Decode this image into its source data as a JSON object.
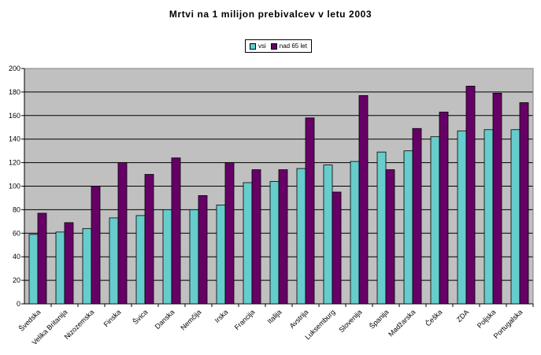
{
  "chart_data": {
    "type": "bar",
    "title": "Mrtvi na 1 milijon prebivalcev v letu 2003",
    "xlabel": "",
    "ylabel": "",
    "ylim": [
      0,
      200
    ],
    "yticks": [
      0,
      20,
      40,
      60,
      80,
      100,
      120,
      140,
      160,
      180,
      200
    ],
    "grid": true,
    "legend_position": "top-center",
    "categories": [
      "Švedska",
      "Velika Britanija",
      "Nizozemska",
      "Finska",
      "Švica",
      "Danska",
      "Nemčija",
      "Irska",
      "Francija",
      "Italija",
      "Avstrija",
      "Luksemburg",
      "Slovenija",
      "Španija",
      "Madžarska",
      "Češka",
      "ZDA",
      "Poljska",
      "Portugalska"
    ],
    "series": [
      {
        "name": "vsi",
        "color": "#66CCCC",
        "values": [
          59,
          61,
          64,
          73,
          75,
          80,
          80,
          84,
          103,
          104,
          115,
          118,
          121,
          129,
          130,
          142,
          147,
          148,
          148
        ]
      },
      {
        "name": "nad 65 let",
        "color": "#660066",
        "values": [
          77,
          69,
          100,
          120,
          110,
          124,
          92,
          120,
          114,
          114,
          158,
          95,
          177,
          114,
          149,
          163,
          185,
          179,
          171
        ]
      }
    ],
    "plot_background": "#C0C0C0"
  }
}
